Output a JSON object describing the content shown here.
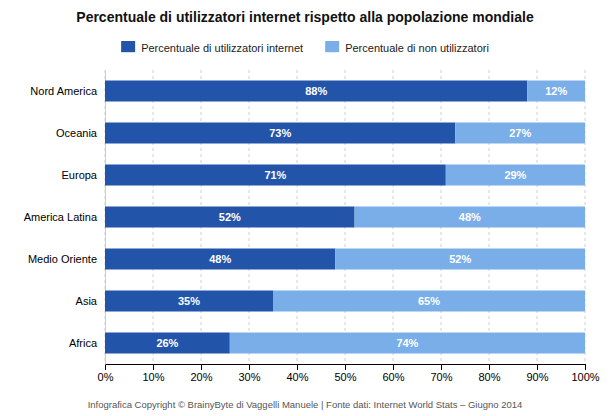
{
  "chart_data": {
    "type": "bar",
    "orientation": "horizontal",
    "stacked": true,
    "title": "Percentuale di utilizzatori internet rispetto alla popolazione mondiale",
    "categories": [
      "Nord America",
      "Oceania",
      "Europa",
      "America Latina",
      "Medio Oriente",
      "Asia",
      "Africa"
    ],
    "series": [
      {
        "name": "Percentuale di utilizzatori internet",
        "color": "#2255aa",
        "values": [
          88,
          73,
          71,
          52,
          48,
          35,
          26
        ],
        "value_labels": [
          "88%",
          "73%",
          "71%",
          "52%",
          "48%",
          "35%",
          "26%"
        ]
      },
      {
        "name": "Percentuale di non utilizzatori",
        "color": "#7aaee8",
        "values": [
          12,
          27,
          29,
          48,
          52,
          65,
          74
        ],
        "value_labels": [
          "12%",
          "27%",
          "29%",
          "48%",
          "52%",
          "65%",
          "74%"
        ]
      }
    ],
    "xlim": [
      0,
      100
    ],
    "xticks": [
      {
        "value": 0,
        "label": "0%"
      },
      {
        "value": 10,
        "label": "10%"
      },
      {
        "value": 20,
        "label": "20%"
      },
      {
        "value": 30,
        "label": "30%"
      },
      {
        "value": 40,
        "label": "40%"
      },
      {
        "value": 50,
        "label": "50%"
      },
      {
        "value": 60,
        "label": "60%"
      },
      {
        "value": 70,
        "label": "70%"
      },
      {
        "value": 80,
        "label": "80%"
      },
      {
        "value": 90,
        "label": "90%"
      },
      {
        "value": 100,
        "label": "100%"
      }
    ],
    "grid": true,
    "legend": "top",
    "data_labels": true,
    "annotations": [
      "Infografica Copyright  © BrainyByte di Vaggelli Manuele  |  Fonte dati: Internet World Stats – Giugno 2014"
    ]
  }
}
